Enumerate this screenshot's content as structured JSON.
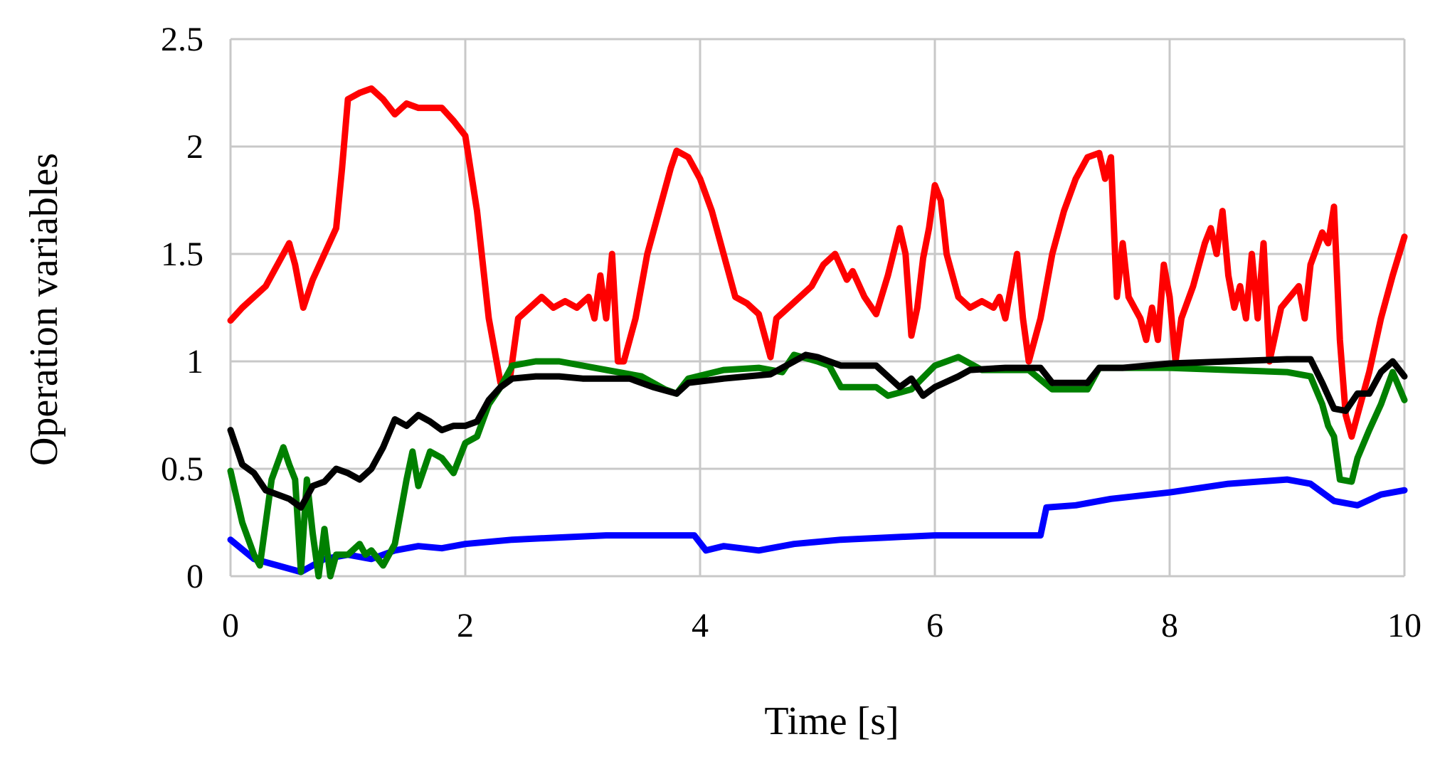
{
  "chart_data": {
    "type": "line",
    "title": "",
    "xlabel": "Time [s]",
    "ylabel": "Operation variables",
    "xlim": [
      0,
      10
    ],
    "ylim": [
      0,
      2.5
    ],
    "xticks": [
      "0",
      "2",
      "4",
      "6",
      "8",
      "10"
    ],
    "yticks": [
      "0",
      "0.5",
      "1",
      "1.5",
      "2",
      "2.5"
    ],
    "grid": true,
    "legend": "none",
    "series": [
      {
        "color": "#ff0000",
        "points": [
          [
            0,
            1.19
          ],
          [
            0.1,
            1.25
          ],
          [
            0.2,
            1.3
          ],
          [
            0.3,
            1.35
          ],
          [
            0.4,
            1.45
          ],
          [
            0.5,
            1.55
          ],
          [
            0.55,
            1.45
          ],
          [
            0.62,
            1.25
          ],
          [
            0.7,
            1.38
          ],
          [
            0.8,
            1.5
          ],
          [
            0.9,
            1.62
          ],
          [
            0.95,
            1.9
          ],
          [
            1.0,
            2.22
          ],
          [
            1.1,
            2.25
          ],
          [
            1.2,
            2.27
          ],
          [
            1.3,
            2.22
          ],
          [
            1.4,
            2.15
          ],
          [
            1.5,
            2.2
          ],
          [
            1.6,
            2.18
          ],
          [
            1.7,
            2.18
          ],
          [
            1.8,
            2.18
          ],
          [
            1.9,
            2.12
          ],
          [
            2.0,
            2.05
          ],
          [
            2.1,
            1.7
          ],
          [
            2.2,
            1.2
          ],
          [
            2.3,
            0.9
          ],
          [
            2.38,
            0.92
          ],
          [
            2.45,
            1.2
          ],
          [
            2.55,
            1.25
          ],
          [
            2.65,
            1.3
          ],
          [
            2.75,
            1.25
          ],
          [
            2.85,
            1.28
          ],
          [
            2.95,
            1.25
          ],
          [
            3.05,
            1.3
          ],
          [
            3.1,
            1.2
          ],
          [
            3.15,
            1.4
          ],
          [
            3.2,
            1.2
          ],
          [
            3.25,
            1.5
          ],
          [
            3.3,
            1.0
          ],
          [
            3.35,
            1.0
          ],
          [
            3.45,
            1.2
          ],
          [
            3.55,
            1.5
          ],
          [
            3.65,
            1.7
          ],
          [
            3.75,
            1.9
          ],
          [
            3.8,
            1.98
          ],
          [
            3.9,
            1.95
          ],
          [
            4.0,
            1.85
          ],
          [
            4.1,
            1.7
          ],
          [
            4.2,
            1.5
          ],
          [
            4.3,
            1.3
          ],
          [
            4.4,
            1.27
          ],
          [
            4.5,
            1.22
          ],
          [
            4.6,
            1.02
          ],
          [
            4.65,
            1.2
          ],
          [
            4.75,
            1.25
          ],
          [
            4.85,
            1.3
          ],
          [
            4.95,
            1.35
          ],
          [
            5.05,
            1.45
          ],
          [
            5.15,
            1.5
          ],
          [
            5.25,
            1.38
          ],
          [
            5.3,
            1.42
          ],
          [
            5.4,
            1.3
          ],
          [
            5.5,
            1.22
          ],
          [
            5.6,
            1.4
          ],
          [
            5.7,
            1.62
          ],
          [
            5.75,
            1.5
          ],
          [
            5.8,
            1.12
          ],
          [
            5.85,
            1.25
          ],
          [
            5.9,
            1.48
          ],
          [
            5.95,
            1.62
          ],
          [
            6.0,
            1.82
          ],
          [
            6.05,
            1.75
          ],
          [
            6.1,
            1.5
          ],
          [
            6.2,
            1.3
          ],
          [
            6.3,
            1.25
          ],
          [
            6.4,
            1.28
          ],
          [
            6.5,
            1.25
          ],
          [
            6.55,
            1.3
          ],
          [
            6.6,
            1.2
          ],
          [
            6.65,
            1.35
          ],
          [
            6.7,
            1.5
          ],
          [
            6.75,
            1.2
          ],
          [
            6.8,
            1.0
          ],
          [
            6.9,
            1.2
          ],
          [
            7.0,
            1.5
          ],
          [
            7.1,
            1.7
          ],
          [
            7.2,
            1.85
          ],
          [
            7.3,
            1.95
          ],
          [
            7.4,
            1.97
          ],
          [
            7.45,
            1.85
          ],
          [
            7.5,
            1.95
          ],
          [
            7.55,
            1.3
          ],
          [
            7.6,
            1.55
          ],
          [
            7.65,
            1.3
          ],
          [
            7.7,
            1.25
          ],
          [
            7.75,
            1.2
          ],
          [
            7.8,
            1.1
          ],
          [
            7.85,
            1.25
          ],
          [
            7.9,
            1.1
          ],
          [
            7.95,
            1.45
          ],
          [
            8.0,
            1.3
          ],
          [
            8.05,
            1.0
          ],
          [
            8.1,
            1.2
          ],
          [
            8.2,
            1.35
          ],
          [
            8.3,
            1.55
          ],
          [
            8.35,
            1.62
          ],
          [
            8.4,
            1.5
          ],
          [
            8.45,
            1.7
          ],
          [
            8.5,
            1.4
          ],
          [
            8.55,
            1.25
          ],
          [
            8.6,
            1.35
          ],
          [
            8.65,
            1.2
          ],
          [
            8.7,
            1.5
          ],
          [
            8.75,
            1.2
          ],
          [
            8.8,
            1.55
          ],
          [
            8.85,
            1.0
          ],
          [
            8.95,
            1.25
          ],
          [
            9.1,
            1.35
          ],
          [
            9.15,
            1.2
          ],
          [
            9.2,
            1.45
          ],
          [
            9.3,
            1.6
          ],
          [
            9.35,
            1.55
          ],
          [
            9.4,
            1.72
          ],
          [
            9.45,
            1.1
          ],
          [
            9.5,
            0.75
          ],
          [
            9.55,
            0.65
          ],
          [
            9.6,
            0.75
          ],
          [
            9.7,
            0.95
          ],
          [
            9.8,
            1.2
          ],
          [
            9.9,
            1.4
          ],
          [
            10.0,
            1.58
          ]
        ]
      },
      {
        "color": "#0000ff",
        "points": [
          [
            0,
            0.17
          ],
          [
            0.2,
            0.08
          ],
          [
            0.4,
            0.05
          ],
          [
            0.6,
            0.02
          ],
          [
            0.8,
            0.08
          ],
          [
            1.0,
            0.1
          ],
          [
            1.2,
            0.08
          ],
          [
            1.4,
            0.12
          ],
          [
            1.6,
            0.14
          ],
          [
            1.8,
            0.13
          ],
          [
            2.0,
            0.15
          ],
          [
            2.4,
            0.17
          ],
          [
            2.8,
            0.18
          ],
          [
            3.2,
            0.19
          ],
          [
            3.6,
            0.19
          ],
          [
            3.95,
            0.19
          ],
          [
            4.05,
            0.12
          ],
          [
            4.2,
            0.14
          ],
          [
            4.5,
            0.12
          ],
          [
            4.8,
            0.15
          ],
          [
            5.2,
            0.17
          ],
          [
            5.6,
            0.18
          ],
          [
            6.0,
            0.19
          ],
          [
            6.4,
            0.19
          ],
          [
            6.9,
            0.19
          ],
          [
            6.95,
            0.32
          ],
          [
            7.2,
            0.33
          ],
          [
            7.5,
            0.36
          ],
          [
            8.0,
            0.39
          ],
          [
            8.5,
            0.43
          ],
          [
            9.0,
            0.45
          ],
          [
            9.2,
            0.43
          ],
          [
            9.4,
            0.35
          ],
          [
            9.6,
            0.33
          ],
          [
            9.8,
            0.38
          ],
          [
            10.0,
            0.4
          ]
        ]
      },
      {
        "color": "#008000",
        "points": [
          [
            0,
            0.49
          ],
          [
            0.1,
            0.25
          ],
          [
            0.2,
            0.1
          ],
          [
            0.25,
            0.05
          ],
          [
            0.35,
            0.45
          ],
          [
            0.45,
            0.6
          ],
          [
            0.5,
            0.52
          ],
          [
            0.55,
            0.45
          ],
          [
            0.6,
            0.02
          ],
          [
            0.65,
            0.45
          ],
          [
            0.7,
            0.2
          ],
          [
            0.75,
            0.0
          ],
          [
            0.8,
            0.22
          ],
          [
            0.85,
            0.0
          ],
          [
            0.9,
            0.1
          ],
          [
            1.0,
            0.1
          ],
          [
            1.1,
            0.15
          ],
          [
            1.15,
            0.1
          ],
          [
            1.2,
            0.12
          ],
          [
            1.3,
            0.05
          ],
          [
            1.4,
            0.15
          ],
          [
            1.5,
            0.45
          ],
          [
            1.55,
            0.58
          ],
          [
            1.6,
            0.42
          ],
          [
            1.7,
            0.58
          ],
          [
            1.8,
            0.55
          ],
          [
            1.9,
            0.48
          ],
          [
            2.0,
            0.62
          ],
          [
            2.1,
            0.65
          ],
          [
            2.2,
            0.8
          ],
          [
            2.3,
            0.88
          ],
          [
            2.4,
            0.98
          ],
          [
            2.6,
            1.0
          ],
          [
            2.8,
            1.0
          ],
          [
            3.0,
            0.98
          ],
          [
            3.2,
            0.96
          ],
          [
            3.5,
            0.93
          ],
          [
            3.7,
            0.87
          ],
          [
            3.8,
            0.85
          ],
          [
            3.9,
            0.92
          ],
          [
            4.2,
            0.96
          ],
          [
            4.5,
            0.97
          ],
          [
            4.7,
            0.95
          ],
          [
            4.8,
            1.03
          ],
          [
            5.0,
            1.0
          ],
          [
            5.1,
            0.98
          ],
          [
            5.2,
            0.88
          ],
          [
            5.5,
            0.88
          ],
          [
            5.6,
            0.84
          ],
          [
            5.8,
            0.87
          ],
          [
            6.0,
            0.98
          ],
          [
            6.1,
            1.0
          ],
          [
            6.2,
            1.02
          ],
          [
            6.4,
            0.96
          ],
          [
            6.8,
            0.96
          ],
          [
            7.0,
            0.87
          ],
          [
            7.3,
            0.87
          ],
          [
            7.4,
            0.97
          ],
          [
            7.6,
            0.97
          ],
          [
            8.0,
            0.97
          ],
          [
            8.5,
            0.96
          ],
          [
            9.0,
            0.95
          ],
          [
            9.2,
            0.93
          ],
          [
            9.3,
            0.8
          ],
          [
            9.35,
            0.7
          ],
          [
            9.4,
            0.65
          ],
          [
            9.45,
            0.45
          ],
          [
            9.55,
            0.44
          ],
          [
            9.6,
            0.55
          ],
          [
            9.7,
            0.68
          ],
          [
            9.8,
            0.8
          ],
          [
            9.9,
            0.95
          ],
          [
            10.0,
            0.82
          ]
        ]
      },
      {
        "color": "#000000",
        "points": [
          [
            0,
            0.68
          ],
          [
            0.1,
            0.52
          ],
          [
            0.2,
            0.48
          ],
          [
            0.3,
            0.4
          ],
          [
            0.4,
            0.38
          ],
          [
            0.5,
            0.36
          ],
          [
            0.6,
            0.32
          ],
          [
            0.7,
            0.42
          ],
          [
            0.8,
            0.44
          ],
          [
            0.9,
            0.5
          ],
          [
            1.0,
            0.48
          ],
          [
            1.1,
            0.45
          ],
          [
            1.2,
            0.5
          ],
          [
            1.3,
            0.6
          ],
          [
            1.4,
            0.73
          ],
          [
            1.5,
            0.7
          ],
          [
            1.6,
            0.75
          ],
          [
            1.7,
            0.72
          ],
          [
            1.8,
            0.68
          ],
          [
            1.9,
            0.7
          ],
          [
            2.0,
            0.7
          ],
          [
            2.1,
            0.72
          ],
          [
            2.2,
            0.82
          ],
          [
            2.3,
            0.88
          ],
          [
            2.4,
            0.92
          ],
          [
            2.6,
            0.93
          ],
          [
            2.8,
            0.93
          ],
          [
            3.0,
            0.92
          ],
          [
            3.4,
            0.92
          ],
          [
            3.6,
            0.88
          ],
          [
            3.8,
            0.85
          ],
          [
            3.9,
            0.9
          ],
          [
            4.2,
            0.92
          ],
          [
            4.6,
            0.94
          ],
          [
            4.8,
            1.0
          ],
          [
            4.9,
            1.03
          ],
          [
            5.0,
            1.02
          ],
          [
            5.2,
            0.98
          ],
          [
            5.5,
            0.98
          ],
          [
            5.6,
            0.93
          ],
          [
            5.7,
            0.88
          ],
          [
            5.8,
            0.92
          ],
          [
            5.9,
            0.84
          ],
          [
            6.0,
            0.88
          ],
          [
            6.2,
            0.93
          ],
          [
            6.3,
            0.96
          ],
          [
            6.6,
            0.97
          ],
          [
            6.9,
            0.97
          ],
          [
            7.0,
            0.9
          ],
          [
            7.3,
            0.9
          ],
          [
            7.4,
            0.97
          ],
          [
            7.6,
            0.97
          ],
          [
            8.0,
            0.99
          ],
          [
            8.5,
            1.0
          ],
          [
            9.0,
            1.01
          ],
          [
            9.2,
            1.01
          ],
          [
            9.3,
            0.9
          ],
          [
            9.4,
            0.78
          ],
          [
            9.5,
            0.77
          ],
          [
            9.6,
            0.85
          ],
          [
            9.7,
            0.85
          ],
          [
            9.8,
            0.95
          ],
          [
            9.9,
            1.0
          ],
          [
            10.0,
            0.93
          ]
        ]
      }
    ]
  }
}
